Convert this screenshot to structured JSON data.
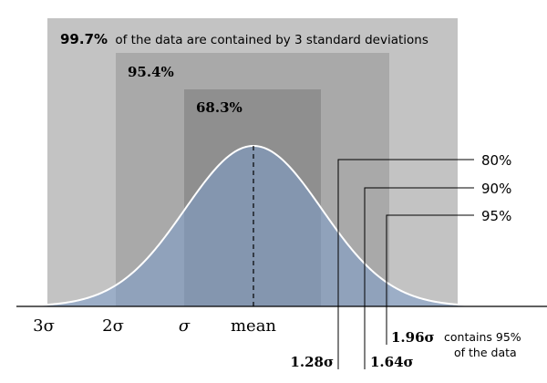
{
  "bands": {
    "three_sd": {
      "percent": "99.7%",
      "text": "of the data are contained by 3 standard deviations",
      "color": "#c3c3c3"
    },
    "two_sd": {
      "percent": "95.4%",
      "color": "#a9a9a9"
    },
    "one_sd": {
      "percent": "68.3%",
      "color": "#8f8f8f"
    }
  },
  "curve": {
    "fill": "#7b9dcb",
    "stroke": "#ffffff"
  },
  "axis_labels": {
    "three_sigma": "3σ",
    "two_sigma": "2σ",
    "sigma": "σ",
    "mean": "mean"
  },
  "callouts": [
    {
      "pct": "80%",
      "value": "1.28σ"
    },
    {
      "pct": "90%",
      "value": "1.64σ"
    },
    {
      "pct": "95%",
      "value": "1.96σ",
      "note_line1": "contains 95%",
      "note_line2": "of the data"
    }
  ]
}
